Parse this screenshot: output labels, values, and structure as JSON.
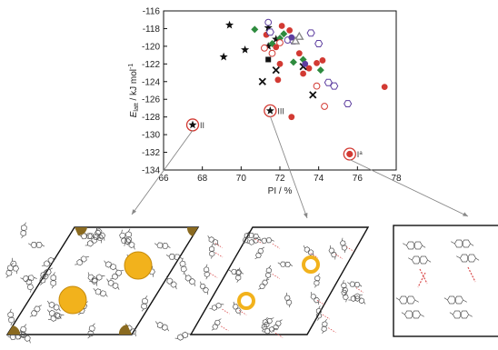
{
  "chart_data": {
    "type": "scatter",
    "title": "",
    "xlabel": "PI / %",
    "ylabel_main": "E",
    "ylabel_sub": "latt",
    "ylabel_unit": " / kJ mol",
    "ylabel_sup": "-1",
    "xlim": [
      66,
      78
    ],
    "ylim": [
      -134,
      -116
    ],
    "xticks": [
      66,
      68,
      70,
      72,
      74,
      76,
      78
    ],
    "yticks": [
      -116,
      -118,
      -120,
      -122,
      -124,
      -126,
      -128,
      -130,
      -132,
      -134
    ],
    "xtick_labels": [
      "66",
      "68",
      "70",
      "72",
      "74",
      "76",
      "78"
    ],
    "ytick_labels": [
      "-116",
      "-118",
      "-120",
      "-122",
      "-124",
      "-126",
      "-128",
      "-130",
      "-132",
      "-134"
    ],
    "grid": false,
    "series": [
      {
        "marker": "star",
        "color": "#111111",
        "points": [
          [
            69.4,
            -117.6
          ],
          [
            71.4,
            -117.9
          ],
          [
            70.2,
            -120.4
          ],
          [
            69.1,
            -121.2
          ],
          [
            71.8,
            -119.2
          ],
          [
            71.4,
            -120.0
          ]
        ]
      },
      {
        "marker": "diamond",
        "color": "#2e8b3e",
        "points": [
          [
            70.7,
            -118.1
          ],
          [
            72.2,
            -118.6
          ],
          [
            72.0,
            -119.1
          ],
          [
            73.2,
            -121.5
          ],
          [
            72.7,
            -121.8
          ],
          [
            74.1,
            -122.7
          ],
          [
            71.6,
            -119.7
          ]
        ]
      },
      {
        "marker": "circle",
        "color": "#d23a33",
        "points": [
          [
            71.3,
            -118.7
          ],
          [
            72.1,
            -117.7
          ],
          [
            72.5,
            -118.2
          ],
          [
            71.8,
            -120.1
          ],
          [
            73.0,
            -120.8
          ],
          [
            72.0,
            -122.0
          ],
          [
            73.9,
            -121.9
          ],
          [
            73.5,
            -122.5
          ],
          [
            73.2,
            -123.1
          ],
          [
            71.9,
            -123.8
          ],
          [
            74.2,
            -121.6
          ],
          [
            72.6,
            -128.0
          ],
          [
            77.4,
            -124.6
          ]
        ]
      },
      {
        "marker": "open-circle",
        "color": "#d23a33",
        "points": [
          [
            71.6,
            -120.8
          ],
          [
            71.2,
            -120.2
          ],
          [
            72.0,
            -119.6
          ],
          [
            73.9,
            -124.5
          ],
          [
            74.3,
            -126.8
          ]
        ]
      },
      {
        "marker": "open-circle",
        "color": "#5e3fa0",
        "points": [
          [
            71.4,
            -117.3
          ],
          [
            72.4,
            -119.3
          ]
        ]
      },
      {
        "marker": "hexagon",
        "color": "#5e3fa0",
        "points": [
          [
            73.6,
            -118.5
          ],
          [
            74.0,
            -119.7
          ],
          [
            72.7,
            -119.4
          ],
          [
            74.5,
            -124.1
          ],
          [
            74.8,
            -124.5
          ],
          [
            75.5,
            -126.5
          ],
          [
            71.5,
            -118.4
          ]
        ]
      },
      {
        "marker": "x",
        "color": "#111111",
        "points": [
          [
            73.2,
            -122.3
          ],
          [
            71.8,
            -122.7
          ],
          [
            71.1,
            -124.0
          ],
          [
            73.7,
            -125.5
          ]
        ]
      },
      {
        "marker": "square",
        "color": "#111111",
        "points": [
          [
            71.4,
            -121.5
          ]
        ]
      },
      {
        "marker": "triangle",
        "color": "#888888",
        "points": [
          [
            73.0,
            -118.9
          ],
          [
            72.8,
            -119.4
          ]
        ]
      },
      {
        "marker": "circle",
        "color": "#5e3fa0",
        "points": [
          [
            72.6,
            -119.0
          ],
          [
            73.3,
            -122.0
          ]
        ]
      }
    ],
    "highlighted": [
      {
        "label": "II",
        "x": 67.5,
        "y": -128.9,
        "marker": "star"
      },
      {
        "label": "III",
        "x": 71.5,
        "y": -127.3,
        "marker": "star"
      },
      {
        "label": "I",
        "label_sup": "a",
        "x": 75.6,
        "y": -132.2,
        "marker": "circle"
      }
    ]
  },
  "colors": {
    "highlight_ring": "#d23a33",
    "void": "#f2b21c",
    "molecule": "#555555",
    "hbond": "#d94c4c"
  },
  "panels": [
    {
      "name": "structure-II",
      "links_to": "II"
    },
    {
      "name": "structure-III",
      "links_to": "III"
    },
    {
      "name": "structure-I",
      "links_to": "I"
    }
  ]
}
